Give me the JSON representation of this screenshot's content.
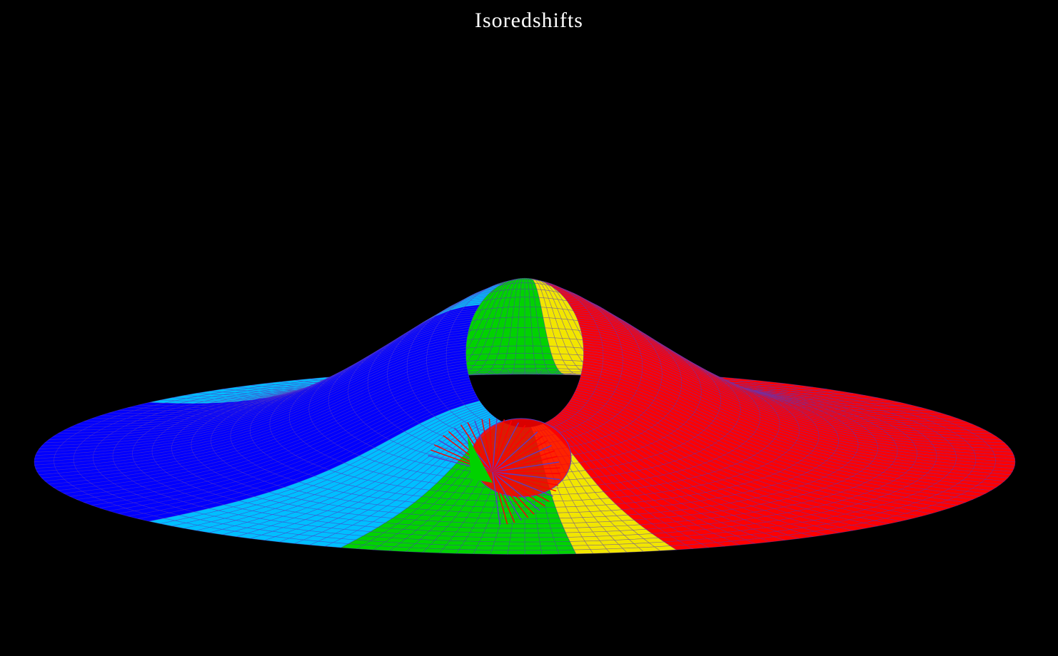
{
  "chart_data": {
    "type": "surface",
    "title": "Isoredshifts",
    "xlabel": "",
    "ylabel": "",
    "grid": false,
    "legend": "none",
    "background": "#000000",
    "title_color": "#ffffff",
    "mesh_line_color": "#5a3cc8",
    "bands": [
      {
        "color": "#0000ff"
      },
      {
        "color": "#00bfff"
      },
      {
        "color": "#00d200"
      },
      {
        "color": "#f2e600"
      },
      {
        "color": "#ff0000"
      }
    ]
  }
}
